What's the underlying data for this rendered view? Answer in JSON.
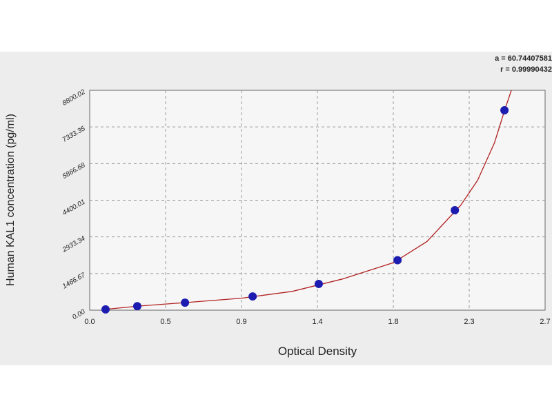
{
  "chart_data": {
    "type": "scatter",
    "x_label": "Optical Density",
    "y_label": "Human KAL1 concentration (pg/ml)",
    "annotations": [
      "a = 60.74407581",
      "r = 0.99990432"
    ],
    "xlim": [
      0,
      2.7
    ],
    "xticks": [
      {
        "value": 0,
        "label": "0.0"
      },
      {
        "value": 0.45,
        "label": "0.5"
      },
      0.9,
      {
        "value": 1.35,
        "label": "1.4"
      },
      1.8,
      {
        "value": 2.25,
        "label": "2.3"
      },
      2.7
    ],
    "ylim": [
      0,
      8800.02
    ],
    "yticks": [
      {
        "value": 0,
        "label": "0.00"
      },
      1466.67,
      2933.34,
      4400.01,
      5866.68,
      7333.35,
      8800.02
    ],
    "grid": true,
    "series": [
      {
        "type": "scatter",
        "color": "#1c1cb0",
        "x": [
          0.094,
          0.282,
          0.565,
          0.966,
          1.358,
          1.825,
          2.165,
          2.459
        ],
        "values": [
          30,
          160,
          300,
          550,
          1050,
          2000,
          4000,
          8000
        ]
      },
      {
        "type": "line",
        "color": "#b22222",
        "x": [
          0.09,
          0.3,
          0.6,
          0.9,
          1.2,
          1.5,
          1.8,
          2.0,
          2.2,
          2.3,
          2.4,
          2.46,
          2.5
        ],
        "values": [
          30,
          170,
          320,
          480,
          750,
          1250,
          1900,
          2750,
          4200,
          5200,
          6700,
          8000,
          8800
        ]
      }
    ]
  }
}
